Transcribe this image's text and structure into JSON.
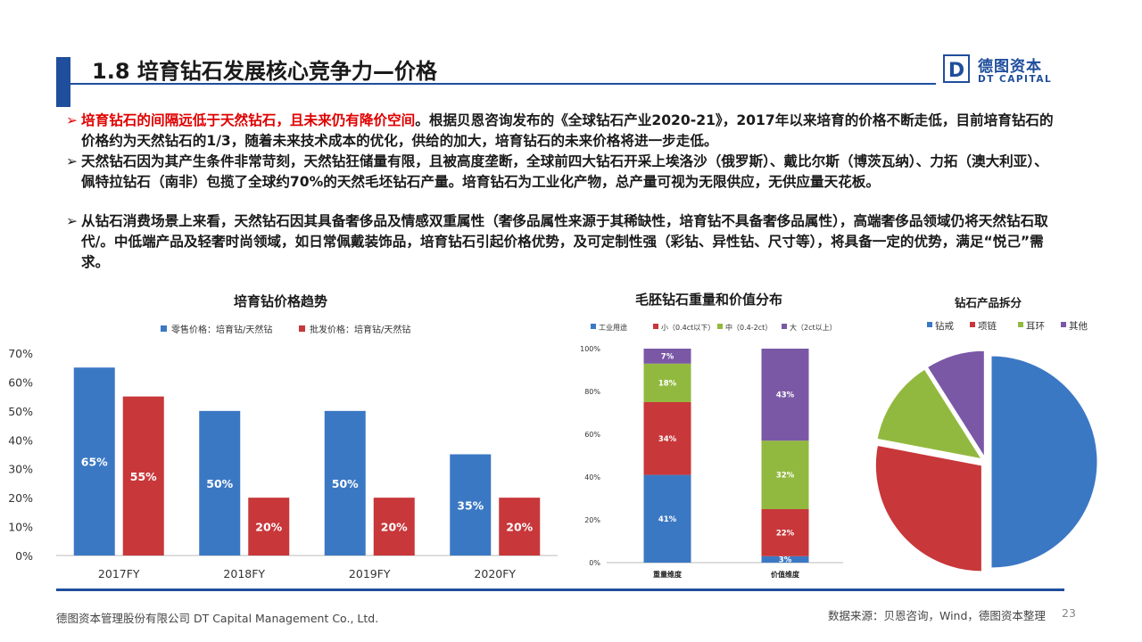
{
  "header": {
    "title": "1.8 培育钻石发展核心竞争力—价格",
    "logo_cn": "德图资本",
    "logo_en": "DT CAPITAL",
    "logo_mark": "D"
  },
  "bullets": [
    {
      "highlight": "培育钻石的间隔远低于天然钻石，且未来仍有降价空间",
      "text": "。根据贝恩咨询发布的《全球钻石产业2020-21》，2017年以来培育的价格不断走低，目前培育钻石的价格约为天然钻石的1/3，随着未来技术成本的优化，供给的加大，培育钻石的未来价格将进一步走低。"
    },
    {
      "highlight": "",
      "text": "天然钻石因为其产生条件非常苛刻，天然钻狂储量有限，且被高度垄断，全球前四大钻石开采上埃洛沙（俄罗斯）、戴比尔斯（博茨瓦纳）、力拓（澳大利亚）、佩特拉钻石（南非）包揽了全球约70%的天然毛坯钻石产量。培育钻石为工业化产物，总产量可视为无限供应，无供应量天花板。"
    },
    {
      "highlight": "",
      "text": "从钻石消费场景上来看，天然钻石因其具备奢侈品及情感双重属性（奢侈品属性来源于其稀缺性，培育钻不具备奢侈品属性），高端奢侈品领域仍将天然钻石取代/。中低端产品及轻奢时尚领域，如日常佩戴装饰品，培育钻石引起价格优势，及可定制性强（彩钻、异性钻、尺寸等），将具备一定的优势，满足“悦己”需求。"
    }
  ],
  "chart_data": [
    {
      "type": "bar",
      "title": "培育钻价格趋势",
      "categories": [
        "2017FY",
        "2018FY",
        "2019FY",
        "2020FY"
      ],
      "series": [
        {
          "name": "零售价格：培育钻/天然钻",
          "values": [
            65,
            50,
            50,
            35
          ],
          "color": "#3b78c4"
        },
        {
          "name": "批发价格：培育钻/天然钻",
          "values": [
            55,
            20,
            20,
            20
          ],
          "color": "#c8373a"
        }
      ],
      "yticks": [
        "0%",
        "10%",
        "20%",
        "30%",
        "40%",
        "50%",
        "60%",
        "70%"
      ],
      "ylim": [
        0,
        70
      ],
      "value_suffix": "%",
      "legend": "top"
    },
    {
      "type": "bar",
      "stacked": true,
      "title": "毛胚钻石重量和价值分布",
      "categories": [
        "重量维度",
        "价值维度"
      ],
      "series": [
        {
          "name": "工业用途",
          "values": [
            41,
            3
          ],
          "color": "#3b78c4"
        },
        {
          "name": "小（0.4ct以下）",
          "values": [
            34,
            22
          ],
          "color": "#c8373a"
        },
        {
          "name": "中（0.4-2ct）",
          "values": [
            18,
            32
          ],
          "color": "#92b93f"
        },
        {
          "name": "大（2ct以上）",
          "values": [
            7,
            43
          ],
          "color": "#7a58a6"
        }
      ],
      "yticks": [
        "0%",
        "20%",
        "40%",
        "60%",
        "80%",
        "100%"
      ],
      "ylim": [
        0,
        100
      ],
      "value_suffix": "%",
      "legend": "top"
    },
    {
      "type": "pie",
      "title": "钻石产品拆分",
      "labels": [
        "钻戒",
        "项链",
        "耳环",
        "其他"
      ],
      "values": [
        50,
        28,
        13,
        9
      ],
      "colors": [
        "#3b78c4",
        "#c8373a",
        "#92b93f",
        "#7a58a6"
      ],
      "legend": "top"
    }
  ],
  "footer": {
    "company": "德图资本管理股份有限公司  DT Capital Management  Co., Ltd.",
    "source": "数据来源：贝恩咨询，Wind，德图资本整理",
    "page": "23"
  }
}
